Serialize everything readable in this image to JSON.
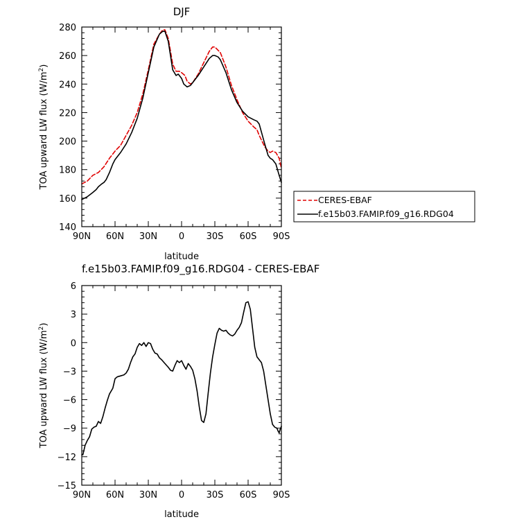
{
  "chart_data": [
    {
      "type": "line",
      "title": "DJF",
      "xlabel": "latitude",
      "ylabel": "TOA upward LW flux (W/m",
      "ylabel_sup": "2",
      "ylabel_end": ")",
      "xlim": [
        90,
        -90
      ],
      "ylim": [
        140,
        280
      ],
      "x_ticks": [
        90,
        60,
        30,
        0,
        -30,
        -60,
        -90
      ],
      "x_tick_labels": [
        "90N",
        "60N",
        "30N",
        "0",
        "30S",
        "60S",
        "90S"
      ],
      "y_ticks": [
        140,
        160,
        180,
        200,
        220,
        240,
        260,
        280
      ],
      "y_tick_labels": [
        "140",
        "160",
        "180",
        "200",
        "220",
        "240",
        "260",
        "280"
      ],
      "legend_position": "right",
      "series": [
        {
          "name": "CERES-EBAF",
          "color": "#e00000",
          "dash": "dashed",
          "x": [
            90,
            85,
            80,
            75,
            70,
            65,
            60,
            55,
            50,
            45,
            40,
            35,
            30,
            25,
            20,
            17,
            15,
            12,
            10,
            8,
            5,
            2,
            0,
            -3,
            -5,
            -8,
            -10,
            -15,
            -20,
            -25,
            -28,
            -30,
            -35,
            -40,
            -45,
            -50,
            -55,
            -60,
            -65,
            -68,
            -70,
            -75,
            -78,
            -80,
            -82,
            -85,
            -88,
            -90
          ],
          "y": [
            170,
            172,
            176,
            178,
            182,
            188,
            193,
            197,
            204,
            211,
            220,
            233,
            250,
            268,
            275,
            278,
            278,
            272,
            263,
            254,
            249,
            249,
            248,
            246,
            242,
            240,
            241,
            247,
            255,
            263,
            266,
            266,
            262,
            252,
            239,
            229,
            220,
            214,
            210,
            208,
            204,
            196,
            193,
            192,
            193,
            192,
            188,
            181
          ]
        },
        {
          "name": "f.e15b03.FAMIP.f09_g16.RDG04",
          "color": "#000000",
          "dash": "solid",
          "x": [
            90,
            85,
            80,
            77,
            75,
            72,
            70,
            68,
            65,
            62,
            60,
            55,
            50,
            45,
            40,
            35,
            30,
            25,
            20,
            17,
            15,
            12,
            10,
            8,
            5,
            3,
            0,
            -2,
            -5,
            -8,
            -10,
            -15,
            -20,
            -25,
            -28,
            -30,
            -33,
            -35,
            -40,
            -45,
            -50,
            -55,
            -60,
            -65,
            -68,
            -70,
            -75,
            -78,
            -80,
            -82,
            -85,
            -88,
            -90
          ],
          "y": [
            159,
            161,
            164,
            166,
            168,
            170,
            171,
            173,
            178,
            184,
            187,
            192,
            198,
            206,
            216,
            230,
            248,
            266,
            275,
            277,
            277,
            270,
            260,
            250,
            246,
            247,
            244,
            240,
            238,
            239,
            241,
            246,
            252,
            258,
            260,
            260,
            259,
            257,
            248,
            236,
            227,
            221,
            217,
            215,
            214,
            212,
            198,
            190,
            188,
            187,
            184,
            176,
            171
          ]
        }
      ]
    },
    {
      "type": "line",
      "title": "f.e15b03.FAMIP.f09_g16.RDG04 - CERES-EBAF",
      "xlabel": "latitude",
      "ylabel": "TOA upward LW flux (W/m",
      "ylabel_sup": "2",
      "ylabel_end": ")",
      "xlim": [
        90,
        -90
      ],
      "ylim": [
        -15,
        6
      ],
      "x_ticks": [
        90,
        60,
        30,
        0,
        -30,
        -60,
        -90
      ],
      "x_tick_labels": [
        "90N",
        "60N",
        "30N",
        "0",
        "30S",
        "60S",
        "90S"
      ],
      "y_ticks": [
        -15,
        -12,
        -9,
        -6,
        -3,
        0,
        3,
        6
      ],
      "y_tick_labels": [
        "−15",
        "−12",
        "−9",
        "−6",
        "−3",
        "0",
        "3",
        "6"
      ],
      "series": [
        {
          "color": "#000000",
          "dash": "solid",
          "x": [
            90,
            89,
            87,
            85,
            83,
            81,
            79,
            77,
            75,
            73,
            71,
            69,
            67,
            65,
            62,
            60,
            58,
            55,
            52,
            50,
            48,
            46,
            44,
            42,
            40,
            38,
            36,
            34,
            32,
            30,
            28,
            26,
            24,
            22,
            20,
            18,
            15,
            12,
            10,
            8,
            6,
            4,
            2,
            0,
            -2,
            -4,
            -6,
            -8,
            -10,
            -12,
            -14,
            -16,
            -18,
            -20,
            -22,
            -24,
            -26,
            -28,
            -30,
            -32,
            -34,
            -36,
            -38,
            -40,
            -42,
            -44,
            -46,
            -48,
            -50,
            -52,
            -54,
            -56,
            -58,
            -60,
            -62,
            -64,
            -66,
            -68,
            -70,
            -72,
            -74,
            -76,
            -78,
            -80,
            -82,
            -84,
            -86,
            -87,
            -88,
            -89,
            -90
          ],
          "y": [
            -11.8,
            -11.8,
            -10.8,
            -10.3,
            -9.9,
            -9.1,
            -8.9,
            -8.8,
            -8.3,
            -8.5,
            -7.8,
            -6.9,
            -6.1,
            -5.4,
            -4.8,
            -3.8,
            -3.6,
            -3.5,
            -3.4,
            -3.2,
            -2.8,
            -2.1,
            -1.5,
            -1.2,
            -0.5,
            -0.1,
            -0.3,
            0.0,
            -0.4,
            0.0,
            -0.1,
            -0.7,
            -1.1,
            -1.2,
            -1.6,
            -1.8,
            -2.2,
            -2.6,
            -2.9,
            -3.0,
            -2.4,
            -1.9,
            -2.1,
            -1.9,
            -2.4,
            -2.8,
            -2.2,
            -2.5,
            -2.9,
            -3.8,
            -5.1,
            -6.8,
            -8.2,
            -8.4,
            -7.5,
            -5.3,
            -3.2,
            -1.5,
            -0.2,
            1.0,
            1.5,
            1.3,
            1.2,
            1.3,
            1.0,
            0.8,
            0.7,
            0.9,
            1.3,
            1.6,
            2.1,
            3.2,
            4.2,
            4.3,
            3.5,
            1.5,
            -0.5,
            -1.5,
            -1.8,
            -2.1,
            -3.0,
            -4.5,
            -6.0,
            -7.5,
            -8.6,
            -8.9,
            -9.0,
            -9.3,
            -9.5,
            -9.1,
            -8.8
          ]
        }
      ]
    }
  ]
}
